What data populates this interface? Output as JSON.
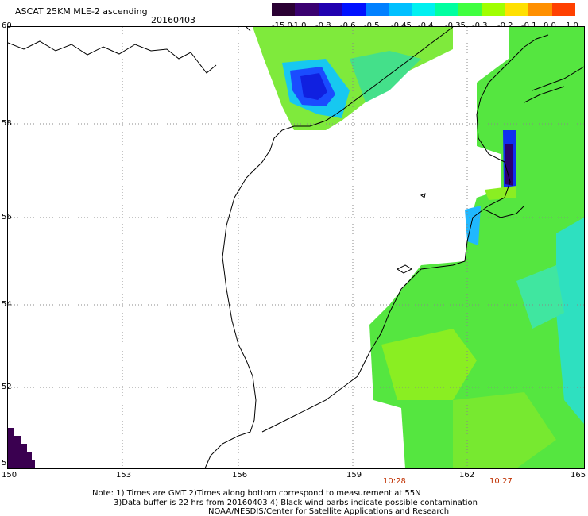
{
  "header": {
    "title": "ASCAT 25KM MLE-2 ascending",
    "date": "20160403"
  },
  "colorbar": {
    "labels": [
      "-15.0",
      "-1.0",
      "-0.8",
      "-0.6",
      "-0.5",
      "-0.45",
      "-0.4",
      "-0.35",
      "-0.3",
      "-0.2",
      "-0.1",
      "0.0",
      "1.0"
    ],
    "colors": [
      "#2a0033",
      "#3a0070",
      "#2000b0",
      "#0010ff",
      "#0080ff",
      "#00c0ff",
      "#00f0f0",
      "#00ffa0",
      "#40ff40",
      "#a0ff00",
      "#ffe000",
      "#ff9000",
      "#ff4000"
    ]
  },
  "axes": {
    "lat_labels": [
      "60",
      "58",
      "56",
      "54",
      "52",
      "5"
    ],
    "lon_labels": [
      "150",
      "153",
      "156",
      "159",
      "162",
      "165"
    ]
  },
  "times": [
    "10:28",
    "10:27"
  ],
  "notes": [
    "Note: 1) Times are GMT 2)Times along bottom correspond to measurement at 55N",
    "3)Data buffer is 22 hrs from 20160403 4) Black wind barbs indicate possible contamination",
    "NOAA/NESDIS/Center for Satellite Applications and Research"
  ]
}
